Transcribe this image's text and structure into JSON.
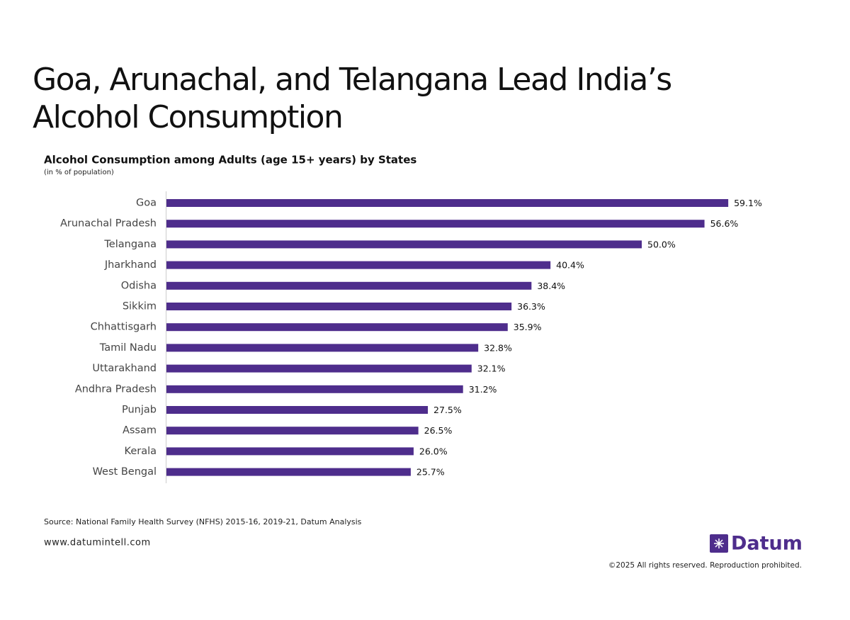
{
  "header": {
    "title": "Goa, Arunachal, and Telangana Lead India’s Alcohol Consumption"
  },
  "chart_data": {
    "type": "bar",
    "orientation": "horizontal",
    "title": "Alcohol Consumption among Adults (age 15+ years) by States",
    "subtitle": "(in % of population)",
    "categories": [
      "Goa",
      "Arunachal Pradesh",
      "Telangana",
      "Jharkhand",
      "Odisha",
      "Sikkim",
      "Chhattisgarh",
      "Tamil Nadu",
      "Uttarakhand",
      "Andhra Pradesh",
      "Punjab",
      "Assam",
      "Kerala",
      "West Bengal"
    ],
    "values": [
      59.1,
      56.6,
      50.0,
      40.4,
      38.4,
      36.3,
      35.9,
      32.8,
      32.1,
      31.2,
      27.5,
      26.5,
      26.0,
      25.7
    ],
    "value_labels": [
      "59.1%",
      "56.6%",
      "50.0%",
      "40.4%",
      "38.4%",
      "36.3%",
      "35.9%",
      "32.8%",
      "32.1%",
      "31.2%",
      "27.5%",
      "26.5%",
      "26.0%",
      "25.7%"
    ],
    "color": "#4e2d8c"
  },
  "footer": {
    "source": "Source: National Family Health Survey (NFHS) 2015-16, 2019-21, Datum Analysis",
    "website": "www.datumintell.com",
    "logo": "Datum",
    "copyright": "©2025 All rights reserved. Reproduction prohibited."
  }
}
